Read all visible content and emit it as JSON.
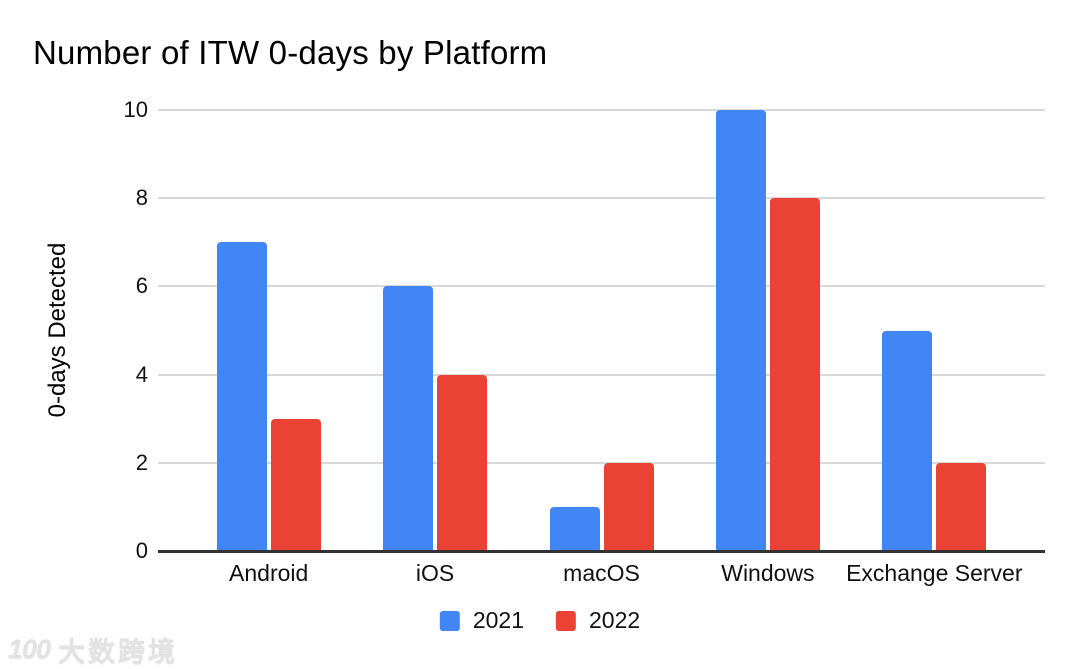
{
  "chart_data": {
    "type": "bar",
    "title": "Number of ITW 0-days by Platform",
    "xlabel": "",
    "ylabel": "0-days Detected",
    "categories": [
      "Android",
      "iOS",
      "macOS",
      "Windows",
      "Exchange Server"
    ],
    "series": [
      {
        "name": "2021",
        "color": "#4285F4",
        "values": [
          7,
          6,
          1,
          10,
          5
        ]
      },
      {
        "name": "2022",
        "color": "#EA4335",
        "values": [
          3,
          4,
          2,
          8,
          2
        ]
      }
    ],
    "ylim": [
      0,
      10
    ],
    "yticks": [
      0,
      2,
      4,
      6,
      8,
      10
    ],
    "grid": true,
    "legend_position": "bottom",
    "colors": {
      "gridline": "#d9d9d9",
      "axis_line": "#333333",
      "text": "#111111",
      "background": "#ffffff"
    }
  },
  "watermark": {
    "logo_text": "100",
    "brand_text": "大数跨境"
  }
}
